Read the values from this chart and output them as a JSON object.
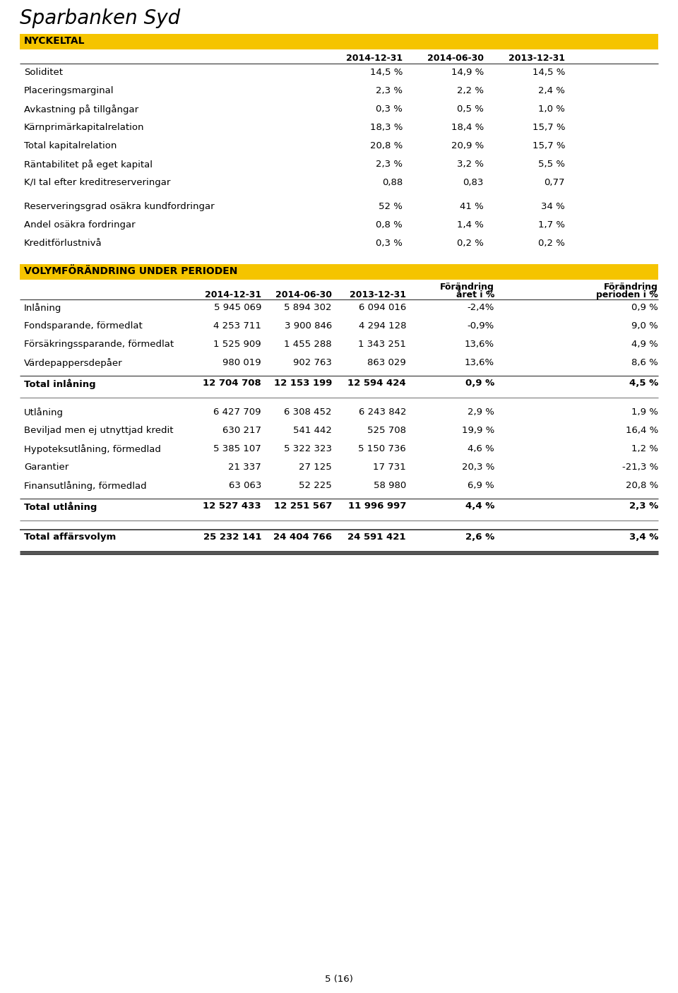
{
  "title": "Sparbanken Syd",
  "page_num": "5 (16)",
  "bg_color": "#ffffff",
  "header_bg": "#F5C400",
  "section1_title": "NYCKELTAL",
  "section2_title": "VOLYMFÖRÄNDRING UNDER PERIODEN",
  "col_headers_nyckeltal": [
    "2014-12-31",
    "2014-06-30",
    "2013-12-31"
  ],
  "nyckeltal_rows": [
    [
      "Soliditet",
      "14,5 %",
      "14,9 %",
      "14,5 %"
    ],
    [
      "Placeringsmarginal",
      "2,3 %",
      "2,2 %",
      "2,4 %"
    ],
    [
      "Avkastning på tillgångar",
      "0,3 %",
      "0,5 %",
      "1,0 %"
    ],
    [
      "Kärnprimärkapitalrelation",
      "18,3 %",
      "18,4 %",
      "15,7 %"
    ],
    [
      "Total kapitalrelation",
      "20,8 %",
      "20,9 %",
      "15,7 %"
    ],
    [
      "Räntabilitet på eget kapital",
      "2,3 %",
      "3,2 %",
      "5,5 %"
    ],
    [
      "K/I tal efter kreditreserveringar",
      "0,88",
      "0,83",
      "0,77"
    ]
  ],
  "nyckeltal_rows2": [
    [
      "Reserveringsgrad osäkra kundfordringar",
      "52 %",
      "41 %",
      "34 %"
    ],
    [
      "Andel osäkra fordringar",
      "0,8 %",
      "1,4 %",
      "1,7 %"
    ],
    [
      "Kreditförlustnivå",
      "0,3 %",
      "0,2 %",
      "0,2 %"
    ]
  ],
  "col_headers_volym_line1": [
    "",
    "",
    "",
    "Förändring",
    "Förändring"
  ],
  "col_headers_volym_line2": [
    "2014-12-31",
    "2014-06-30",
    "2013-12-31",
    "året i %",
    "perioden i %"
  ],
  "inlaning_rows": [
    [
      "Inlåning",
      "5 945 069",
      "5 894 302",
      "6 094 016",
      "-2,4%",
      "0,9 %"
    ],
    [
      "Fondsparande, förmedlat",
      "4 253 711",
      "3 900 846",
      "4 294 128",
      "-0,9%",
      "9,0 %"
    ],
    [
      "Försäkringssparande, förmedlat",
      "1 525 909",
      "1 455 288",
      "1 343 251",
      "13,6%",
      "4,9 %"
    ],
    [
      "Värdepappersdepåer",
      "980 019",
      "902 763",
      "863 029",
      "13,6%",
      "8,6 %"
    ]
  ],
  "total_inlaning": [
    "Total inlåning",
    "12 704 708",
    "12 153 199",
    "12 594 424",
    "0,9 %",
    "4,5 %"
  ],
  "utlaning_rows": [
    [
      "Utlåning",
      "6 427 709",
      "6 308 452",
      "6 243 842",
      "2,9 %",
      "1,9 %"
    ],
    [
      "Beviljad men ej utnyttjad kredit",
      "630 217",
      "541 442",
      "525 708",
      "19,9 %",
      "16,4 %"
    ],
    [
      "Hypoteksutlåning, förmedlad",
      "5 385 107",
      "5 322 323",
      "5 150 736",
      "4,6 %",
      "1,2 %"
    ],
    [
      "Garantier",
      "21 337",
      "27 125",
      "17 731",
      "20,3 %",
      "-21,3 %"
    ],
    [
      "Finansutlåning, förmedlad",
      "63 063",
      "52 225",
      "58 980",
      "6,9 %",
      "20,8 %"
    ]
  ],
  "total_utlaning": [
    "Total utlåning",
    "12 527 433",
    "12 251 567",
    "11 996 997",
    "4,4 %",
    "2,3 %"
  ],
  "total_affarsvolym": [
    "Total affärsvolym",
    "25 232 141",
    "24 404 766",
    "24 591 421",
    "2,6 %",
    "3,4 %"
  ]
}
